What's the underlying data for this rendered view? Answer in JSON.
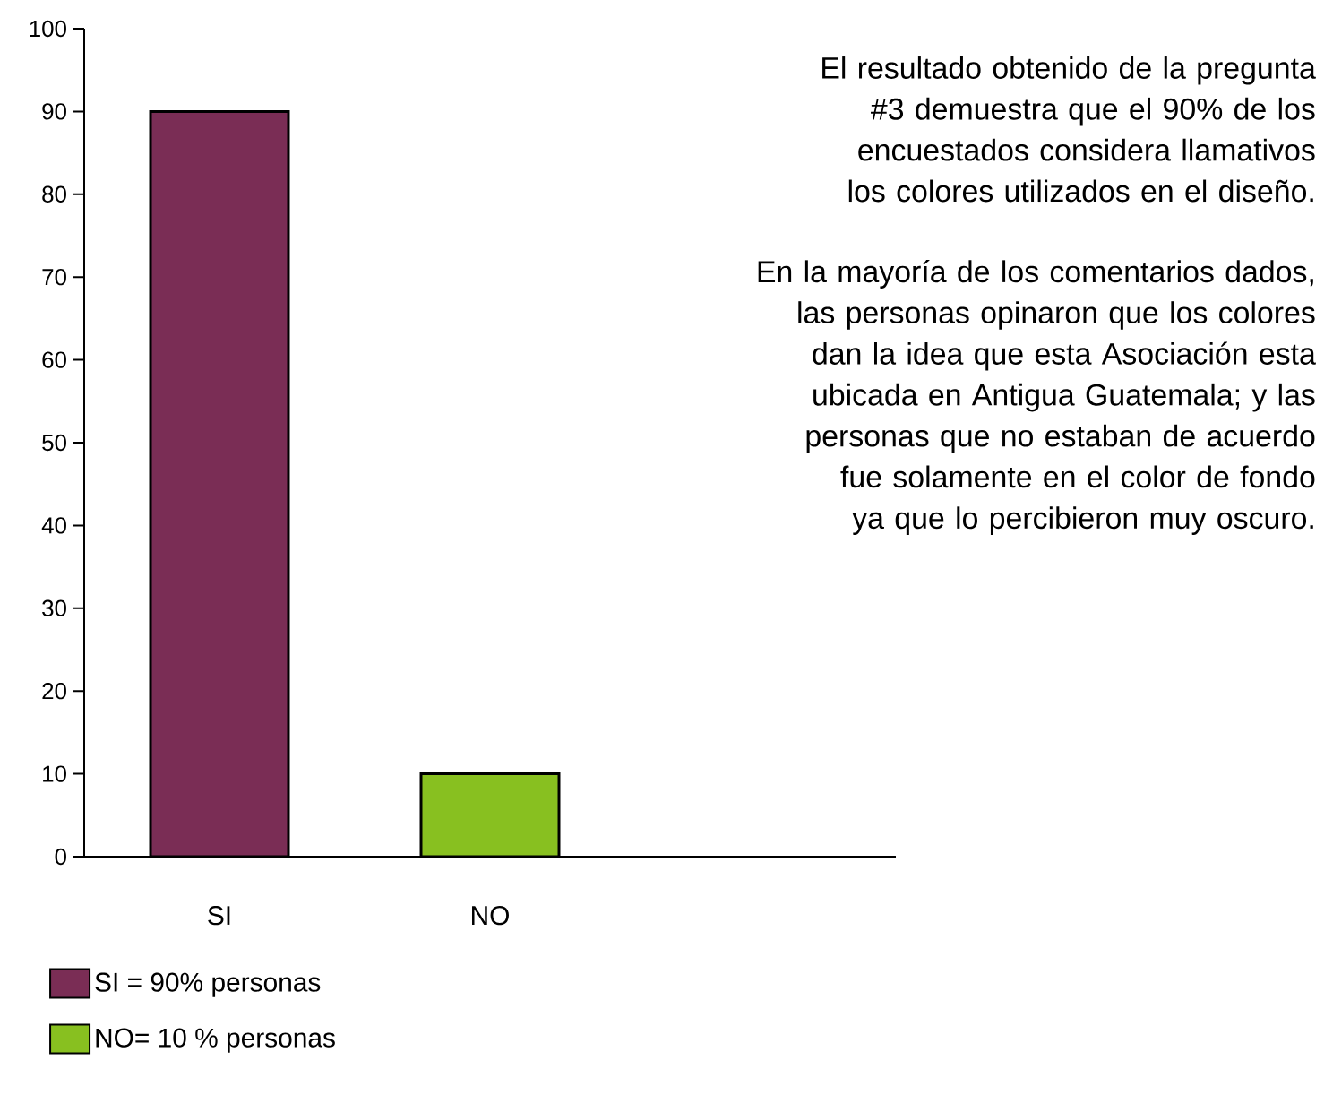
{
  "chart_data": {
    "type": "bar",
    "categories": [
      "SI",
      "NO",
      null
    ],
    "series": [
      {
        "name": "SI =  90% personas",
        "color": "#7a2d55",
        "values": [
          90,
          null,
          null
        ]
      },
      {
        "name": "NO= 10 % personas",
        "color": "#88c020",
        "values": [
          null,
          10,
          null
        ]
      }
    ],
    "ylim": [
      0,
      100
    ],
    "yticks": [
      0,
      10,
      20,
      30,
      40,
      50,
      60,
      70,
      80,
      90,
      100
    ],
    "grid": false,
    "legend": "bottom left",
    "annotations": [
      "El resultado obtenido de la pregunta  #3 demuestra que el 90% de los encuestados considera llamativos los colores utilizados en el diseño.",
      "En la mayoría de los comentarios dados, las personas opinaron que los colores dan la idea que esta Asociación esta ubicada en Antigua Guatemala;  y las personas que no estaban de acuerdo fue solamente en el color de fondo ya que lo percibieron muy oscuro."
    ]
  }
}
